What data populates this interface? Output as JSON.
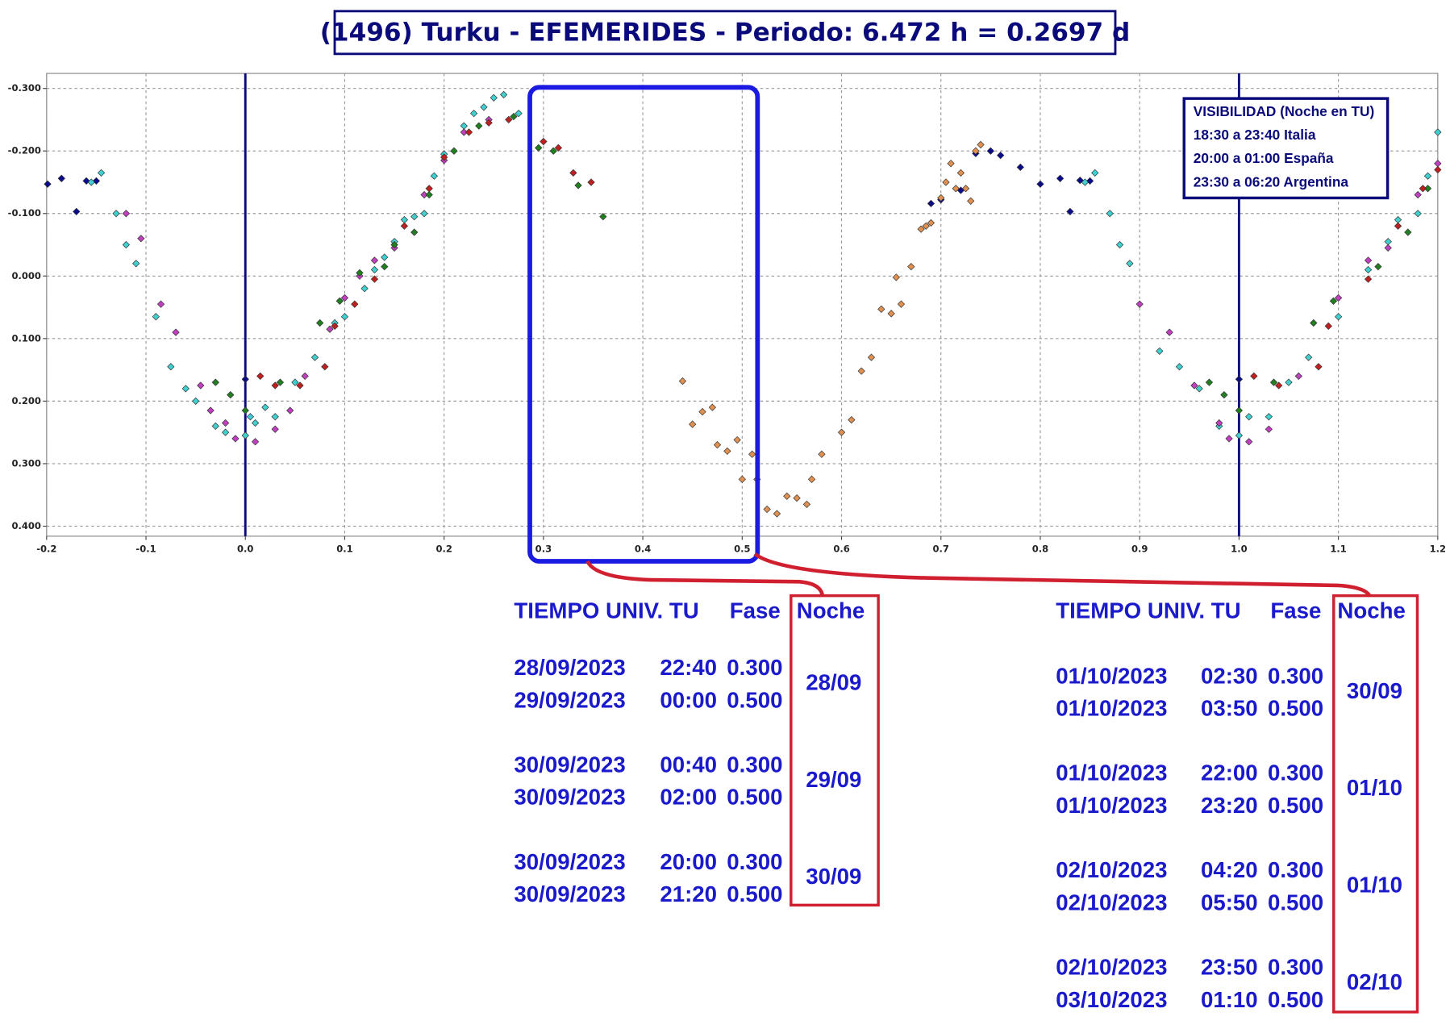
{
  "chart_data": {
    "type": "scatter",
    "title": "(1496) Turku - EFEMERIDES - Periodo: 6.472 h = 0.2697 d",
    "xlim": [
      -0.2,
      1.2
    ],
    "ylim": [
      -0.324,
      0.416
    ],
    "y_inverted": true,
    "grid": true,
    "vlines": [
      0,
      1
    ],
    "vline_color": "#0a0a7a",
    "xticks": [
      -0.2,
      -0.1,
      {
        "value": 0,
        "label": "0.0"
      },
      0.1,
      0.2,
      0.3,
      0.4,
      0.5,
      0.6,
      0.7,
      0.8,
      0.9,
      {
        "value": 1,
        "label": "1.0"
      },
      1.1,
      1.2
    ],
    "yticks": [
      {
        "value": -0.3,
        "label": "-0.300"
      },
      {
        "value": -0.2,
        "label": "-0.200"
      },
      {
        "value": -0.1,
        "label": "-0.100"
      },
      {
        "value": 0,
        "label": "0.000"
      },
      {
        "value": 0.1,
        "label": "0.100"
      },
      {
        "value": 0.2,
        "label": "0.200"
      },
      {
        "value": 0.3,
        "label": "0.300"
      },
      {
        "value": 0.4,
        "label": "0.400"
      }
    ],
    "series": [
      {
        "color": "#0a0a8c",
        "x": [
          -0.199,
          -0.185,
          -0.17,
          -0.16,
          -0.15,
          0,
          0.69,
          0.7,
          0.72,
          0.735,
          0.75,
          0.76,
          0.78,
          0.8,
          0.82,
          0.83,
          0.84,
          0.85,
          1
        ],
        "values": [
          -0.147,
          -0.156,
          -0.103,
          -0.152,
          -0.152,
          0.165,
          -0.116,
          -0.122,
          -0.137,
          -0.196,
          -0.2,
          -0.193,
          -0.174,
          -0.147,
          -0.156,
          -0.103,
          -0.153,
          -0.152,
          0.165
        ]
      },
      {
        "color": "#40d0d0",
        "x": [
          -0.155,
          -0.145,
          -0.13,
          -0.12,
          -0.11,
          -0.09,
          -0.075,
          -0.06,
          -0.05,
          -0.03,
          -0.02,
          0,
          0.005,
          0.01,
          0.02,
          0.03,
          0.05,
          0.07,
          0.09,
          0.1,
          0.12,
          0.13,
          0.14,
          0.15,
          0.16,
          0.17,
          0.18,
          0.19,
          0.2,
          0.22,
          0.23,
          0.24,
          0.25,
          0.26,
          0.275,
          0.845,
          0.855,
          0.87,
          0.88,
          0.89,
          0.92,
          0.94,
          0.96,
          0.98,
          1,
          1.01,
          1.03,
          1.05,
          1.07,
          1.1,
          1.13,
          1.15,
          1.16,
          1.18,
          1.19,
          1.2
        ],
        "values": [
          -0.15,
          -0.165,
          -0.1,
          -0.05,
          -0.02,
          0.065,
          0.145,
          0.18,
          0.2,
          0.24,
          0.25,
          0.255,
          0.225,
          0.235,
          0.21,
          0.225,
          0.17,
          0.13,
          0.075,
          0.065,
          0.02,
          -0.01,
          -0.03,
          -0.055,
          -0.09,
          -0.095,
          -0.1,
          -0.16,
          -0.195,
          -0.24,
          -0.26,
          -0.27,
          -0.285,
          -0.29,
          -0.26,
          -0.15,
          -0.165,
          -0.1,
          -0.05,
          -0.02,
          0.12,
          0.145,
          0.18,
          0.24,
          0.255,
          0.225,
          0.225,
          0.17,
          0.13,
          0.065,
          -0.01,
          -0.055,
          -0.09,
          -0.1,
          -0.16,
          -0.23
        ]
      },
      {
        "color": "#c040c0",
        "x": [
          -0.12,
          -0.105,
          -0.085,
          -0.07,
          -0.045,
          -0.035,
          -0.02,
          -0.01,
          0.01,
          0.03,
          0.045,
          0.06,
          0.085,
          0.1,
          0.115,
          0.13,
          0.15,
          0.18,
          0.2,
          0.22,
          0.245,
          0.9,
          0.93,
          0.955,
          0.98,
          0.99,
          1.01,
          1.03,
          1.06,
          1.1,
          1.13,
          1.15,
          1.18,
          1.2
        ],
        "values": [
          -0.1,
          -0.06,
          0.045,
          0.09,
          0.175,
          0.215,
          0.235,
          0.26,
          0.265,
          0.245,
          0.215,
          0.16,
          0.085,
          0.035,
          0,
          -0.025,
          -0.045,
          -0.13,
          -0.185,
          -0.23,
          -0.25,
          0.045,
          0.09,
          0.175,
          0.235,
          0.26,
          0.265,
          0.245,
          0.16,
          0.035,
          -0.025,
          -0.045,
          -0.13,
          -0.18
        ]
      },
      {
        "color": "#208020",
        "x": [
          -0.03,
          -0.015,
          0,
          0.035,
          0.075,
          0.095,
          0.115,
          0.14,
          0.15,
          0.17,
          0.185,
          0.21,
          0.235,
          0.27,
          0.295,
          0.31,
          0.335,
          0.36,
          0.97,
          0.985,
          1,
          1.035,
          1.075,
          1.095,
          1.14,
          1.17,
          1.19
        ],
        "values": [
          0.17,
          0.19,
          0.215,
          0.17,
          0.075,
          0.04,
          -0.005,
          -0.015,
          -0.05,
          -0.07,
          -0.13,
          -0.2,
          -0.24,
          -0.255,
          -0.205,
          -0.2,
          -0.145,
          -0.095,
          0.17,
          0.19,
          0.215,
          0.17,
          0.075,
          0.04,
          -0.015,
          -0.07,
          -0.14
        ]
      },
      {
        "color": "#c02020",
        "x": [
          0.015,
          0.03,
          0.055,
          0.08,
          0.09,
          0.11,
          0.13,
          0.16,
          0.185,
          0.2,
          0.225,
          0.245,
          0.265,
          0.3,
          0.315,
          0.33,
          0.348,
          1.015,
          1.04,
          1.08,
          1.09,
          1.13,
          1.16,
          1.185,
          1.2
        ],
        "values": [
          0.16,
          0.175,
          0.175,
          0.145,
          0.08,
          0.045,
          0.005,
          -0.08,
          -0.14,
          -0.19,
          -0.23,
          -0.245,
          -0.25,
          -0.215,
          -0.205,
          -0.165,
          -0.15,
          0.16,
          0.175,
          0.145,
          0.08,
          0.005,
          -0.08,
          -0.14,
          -0.17
        ]
      },
      {
        "color": "#e09050",
        "x": [
          0.44,
          0.45,
          0.46,
          0.47,
          0.475,
          0.485,
          0.495,
          0.5,
          0.51,
          0.515,
          0.525,
          0.535,
          0.545,
          0.555,
          0.565,
          0.57,
          0.58,
          0.6,
          0.61,
          0.62,
          0.63,
          0.64,
          0.65,
          0.655,
          0.66,
          0.67,
          0.68,
          0.685,
          0.69,
          0.7,
          0.705,
          0.71,
          0.715,
          0.72,
          0.725,
          0.73,
          0.735,
          0.74
        ],
        "values": [
          0.168,
          0.237,
          0.217,
          0.21,
          0.27,
          0.28,
          0.262,
          0.325,
          0.285,
          0.325,
          0.373,
          0.38,
          0.352,
          0.355,
          0.365,
          0.325,
          0.285,
          0.25,
          0.23,
          0.152,
          0.13,
          0.053,
          0.06,
          0.002,
          0.045,
          -0.015,
          -0.075,
          -0.08,
          -0.085,
          -0.125,
          -0.15,
          -0.18,
          -0.14,
          -0.165,
          -0.14,
          -0.12,
          -0.2,
          -0.21
        ]
      }
    ]
  },
  "visibility": {
    "title": "VISIBILIDAD (Noche en TU)",
    "lines": [
      "18:30 a 23:40 Italia",
      "20:00 a 01:00 España",
      "23:30 a 06:20 Argentina"
    ]
  },
  "tables": [
    {
      "header": [
        "TIEMPO UNIV. TU",
        "Fase",
        "Noche"
      ],
      "groups": [
        {
          "rows": [
            [
              "28/09/2023",
              "22:40",
              "0.300"
            ],
            [
              "29/09/2023",
              "00:00",
              "0.500"
            ]
          ],
          "noche": "28/09"
        },
        {
          "rows": [
            [
              "30/09/2023",
              "00:40",
              "0.300"
            ],
            [
              "30/09/2023",
              "02:00",
              "0.500"
            ]
          ],
          "noche": "29/09"
        },
        {
          "rows": [
            [
              "30/09/2023",
              "20:00",
              "0.300"
            ],
            [
              "30/09/2023",
              "21:20",
              "0.500"
            ]
          ],
          "noche": "30/09"
        }
      ]
    },
    {
      "header": [
        "TIEMPO UNIV. TU",
        "Fase",
        "Noche"
      ],
      "groups": [
        {
          "rows": [
            [
              "01/10/2023",
              "02:30",
              "0.300"
            ],
            [
              "01/10/2023",
              "03:50",
              "0.500"
            ]
          ],
          "noche": "30/09"
        },
        {
          "rows": [
            [
              "01/10/2023",
              "22:00",
              "0.300"
            ],
            [
              "01/10/2023",
              "23:20",
              "0.500"
            ]
          ],
          "noche": "01/10"
        },
        {
          "rows": [
            [
              "02/10/2023",
              "04:20",
              "0.300"
            ],
            [
              "02/10/2023",
              "05:50",
              "0.500"
            ]
          ],
          "noche": "01/10"
        },
        {
          "rows": [
            [
              "02/10/2023",
              "23:50",
              "0.300"
            ],
            [
              "03/10/2023",
              "01:10",
              "0.500"
            ]
          ],
          "noche": "02/10"
        }
      ]
    }
  ]
}
